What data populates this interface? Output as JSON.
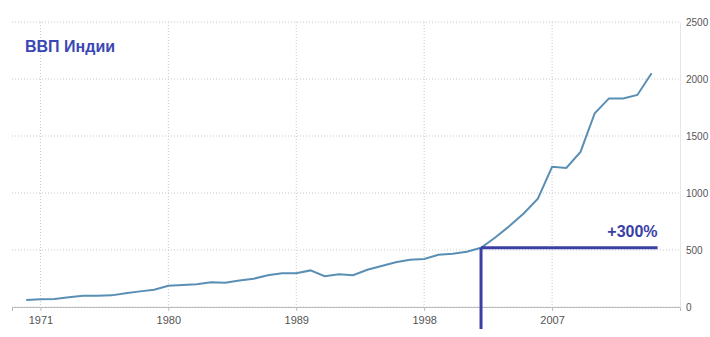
{
  "chart_data": {
    "type": "line",
    "title": "ВВП Индии",
    "x": [
      1970,
      1971,
      1972,
      1973,
      1974,
      1975,
      1976,
      1977,
      1978,
      1979,
      1980,
      1981,
      1982,
      1983,
      1984,
      1985,
      1986,
      1987,
      1988,
      1989,
      1990,
      1991,
      1992,
      1993,
      1994,
      1995,
      1996,
      1997,
      1998,
      1999,
      2000,
      2001,
      2002,
      2003,
      2004,
      2005,
      2006,
      2007,
      2008,
      2009,
      2010,
      2011,
      2012,
      2013,
      2014
    ],
    "values": [
      62,
      67,
      71,
      85,
      99,
      98,
      102,
      121,
      137,
      152,
      186,
      193,
      200,
      218,
      212,
      232,
      248,
      279,
      296,
      296,
      321,
      270,
      288,
      279,
      327,
      360,
      392,
      415,
      421,
      458,
      468,
      485,
      520,
      610,
      710,
      820,
      950,
      1230,
      1220,
      1360,
      1700,
      1830,
      1830,
      1860,
      2050
    ],
    "color": "#5a8fb5",
    "xlim": [
      1969,
      2016
    ],
    "ylim": [
      0,
      2500
    ],
    "xticks": [
      1971,
      1980,
      1989,
      1998,
      2007
    ],
    "yticks": [
      0,
      500,
      1000,
      1500,
      2000,
      2500
    ],
    "grid": true,
    "annotations": [
      {
        "text": "+300%",
        "x": 2002,
        "y": 520
      }
    ]
  }
}
